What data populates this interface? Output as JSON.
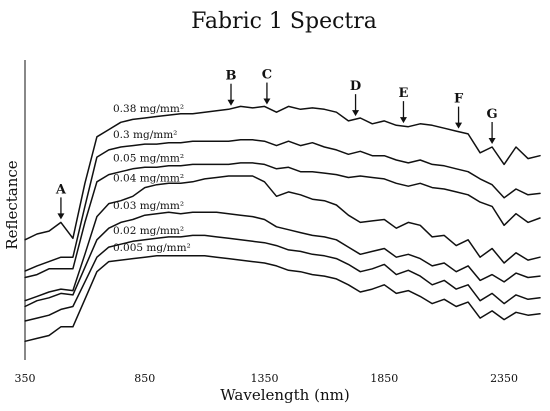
{
  "chart_data": {
    "type": "line",
    "title": "Fabric 1 Spectra",
    "xlabel": "Wavelength (nm)",
    "ylabel": "Reflectance",
    "xlim": [
      350,
      2500
    ],
    "x_ticks": [
      "350",
      "850",
      "1350",
      "1850",
      "2350"
    ],
    "y_ticks_shown": false,
    "grid": false,
    "x": [
      350,
      400,
      450,
      500,
      550,
      600,
      650,
      700,
      750,
      800,
      850,
      900,
      950,
      1000,
      1050,
      1100,
      1150,
      1200,
      1250,
      1300,
      1350,
      1400,
      1450,
      1500,
      1550,
      1600,
      1650,
      1700,
      1750,
      1800,
      1850,
      1900,
      1950,
      2000,
      2050,
      2100,
      2150,
      2200,
      2250,
      2300,
      2350,
      2400,
      2450,
      2500
    ],
    "series": [
      {
        "name": "0.38 mg/mm²",
        "values": [
          0.38,
          0.4,
          0.41,
          0.44,
          0.385,
          0.575,
          0.735,
          0.76,
          0.785,
          0.795,
          0.8,
          0.805,
          0.81,
          0.815,
          0.815,
          0.82,
          0.825,
          0.83,
          0.84,
          0.835,
          0.84,
          0.82,
          0.84,
          0.83,
          0.835,
          0.83,
          0.82,
          0.79,
          0.8,
          0.78,
          0.79,
          0.775,
          0.77,
          0.78,
          0.775,
          0.765,
          0.755,
          0.745,
          0.68,
          0.7,
          0.64,
          0.7,
          0.66,
          0.67
        ]
      },
      {
        "name": "0.3 mg/mm²",
        "values": [
          0.272,
          0.29,
          0.305,
          0.32,
          0.32,
          0.495,
          0.665,
          0.69,
          0.7,
          0.705,
          0.71,
          0.71,
          0.715,
          0.715,
          0.72,
          0.72,
          0.72,
          0.72,
          0.725,
          0.725,
          0.72,
          0.705,
          0.72,
          0.705,
          0.715,
          0.7,
          0.69,
          0.675,
          0.685,
          0.67,
          0.67,
          0.655,
          0.645,
          0.655,
          0.64,
          0.635,
          0.625,
          0.615,
          0.59,
          0.57,
          0.525,
          0.555,
          0.535,
          0.54
        ]
      },
      {
        "name": "0.05 mg/mm²",
        "values": [
          0.25,
          0.26,
          0.28,
          0.28,
          0.28,
          0.44,
          0.58,
          0.605,
          0.615,
          0.625,
          0.63,
          0.63,
          0.635,
          0.635,
          0.64,
          0.64,
          0.64,
          0.64,
          0.645,
          0.645,
          0.64,
          0.625,
          0.63,
          0.615,
          0.615,
          0.61,
          0.605,
          0.595,
          0.6,
          0.595,
          0.59,
          0.575,
          0.565,
          0.575,
          0.56,
          0.555,
          0.545,
          0.535,
          0.51,
          0.495,
          0.43,
          0.47,
          0.44,
          0.455
        ]
      },
      {
        "name": "0.04 mg/mm²",
        "values": [
          0.17,
          0.185,
          0.2,
          0.21,
          0.205,
          0.33,
          0.46,
          0.505,
          0.515,
          0.53,
          0.56,
          0.57,
          0.575,
          0.575,
          0.58,
          0.59,
          0.595,
          0.6,
          0.6,
          0.6,
          0.58,
          0.53,
          0.545,
          0.535,
          0.52,
          0.515,
          0.5,
          0.465,
          0.44,
          0.445,
          0.45,
          0.42,
          0.44,
          0.43,
          0.39,
          0.395,
          0.36,
          0.38,
          0.32,
          0.35,
          0.3,
          0.335,
          0.31,
          0.32
        ]
      },
      {
        "name": "0.03 mg/mm²",
        "values": [
          0.15,
          0.17,
          0.18,
          0.195,
          0.19,
          0.285,
          0.38,
          0.42,
          0.44,
          0.45,
          0.465,
          0.47,
          0.475,
          0.47,
          0.475,
          0.475,
          0.475,
          0.47,
          0.465,
          0.46,
          0.45,
          0.425,
          0.415,
          0.405,
          0.395,
          0.39,
          0.38,
          0.355,
          0.33,
          0.34,
          0.35,
          0.32,
          0.33,
          0.315,
          0.29,
          0.3,
          0.27,
          0.29,
          0.24,
          0.26,
          0.235,
          0.265,
          0.25,
          0.255
        ]
      },
      {
        "name": "0.02 mg/mm²",
        "values": [
          0.1,
          0.11,
          0.12,
          0.14,
          0.15,
          0.235,
          0.32,
          0.355,
          0.365,
          0.375,
          0.38,
          0.385,
          0.39,
          0.39,
          0.395,
          0.395,
          0.39,
          0.385,
          0.38,
          0.375,
          0.37,
          0.36,
          0.345,
          0.34,
          0.33,
          0.325,
          0.315,
          0.295,
          0.27,
          0.28,
          0.295,
          0.26,
          0.275,
          0.255,
          0.225,
          0.24,
          0.21,
          0.225,
          0.17,
          0.195,
          0.16,
          0.19,
          0.175,
          0.18
        ]
      },
      {
        "name": "0.005 mg/mm²",
        "values": [
          0.03,
          0.04,
          0.05,
          0.08,
          0.08,
          0.175,
          0.27,
          0.305,
          0.31,
          0.315,
          0.32,
          0.325,
          0.325,
          0.325,
          0.325,
          0.325,
          0.32,
          0.315,
          0.31,
          0.305,
          0.3,
          0.29,
          0.275,
          0.27,
          0.26,
          0.255,
          0.245,
          0.225,
          0.2,
          0.21,
          0.225,
          0.195,
          0.205,
          0.185,
          0.16,
          0.175,
          0.15,
          0.165,
          0.11,
          0.135,
          0.105,
          0.13,
          0.12,
          0.125
        ]
      }
    ],
    "annotations": [
      {
        "label": "A",
        "x": 500
      },
      {
        "label": "B",
        "x": 1210
      },
      {
        "label": "C",
        "x": 1360
      },
      {
        "label": "D",
        "x": 1730
      },
      {
        "label": "E",
        "x": 1930
      },
      {
        "label": "F",
        "x": 2160
      },
      {
        "label": "G",
        "x": 2300
      }
    ]
  }
}
